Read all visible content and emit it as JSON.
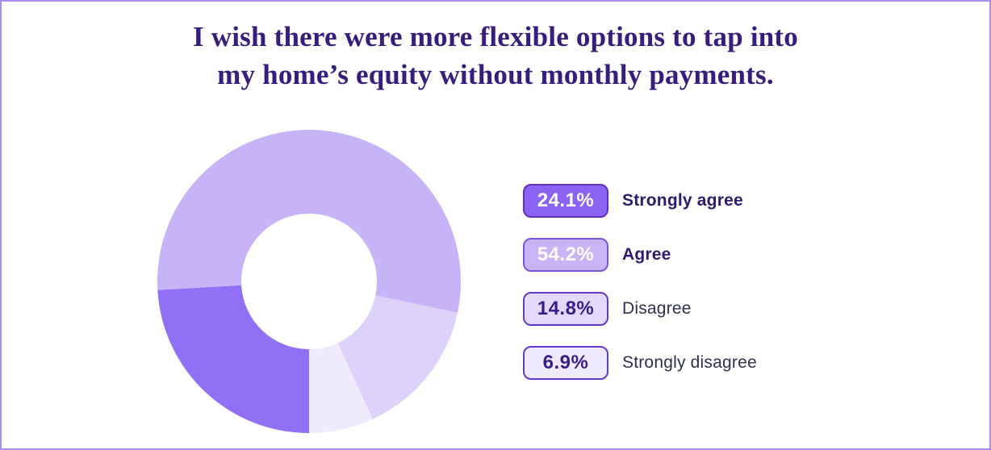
{
  "page": {
    "background": "#ffffff",
    "border_color": "#a98cf5"
  },
  "title": {
    "line1": "I wish there were more flexible options to tap into",
    "line2": "my home’s equity without monthly payments.",
    "color": "#371e7c"
  },
  "chart_data": {
    "type": "pie",
    "variant": "donut",
    "title": "I wish there were more flexible options to tap into my home’s equity without monthly payments.",
    "start_angle_deg": 180,
    "direction": "clockwise",
    "inner_radius_ratio": 0.447,
    "legend_position": "right",
    "segments": [
      {
        "label": "Strongly agree",
        "value": 24.1,
        "color": "#9070f5"
      },
      {
        "label": "Agree",
        "value": 54.2,
        "color": "#c6b3f8"
      },
      {
        "label": "Disagree",
        "value": 14.8,
        "color": "#ddd2f9"
      },
      {
        "label": "Strongly disagree",
        "value": 6.9,
        "color": "#efeafc"
      }
    ]
  },
  "legend": {
    "items": [
      {
        "pct": "24.1%",
        "label": "Strongly agree",
        "badge_bg": "#8a63f2",
        "badge_border": "#6030c0",
        "badge_text": "#ffffff",
        "label_color": "#2e1a6e",
        "label_weight": "bold"
      },
      {
        "pct": "54.2%",
        "label": "Agree",
        "badge_bg": "#c9b4f6",
        "badge_border": "#7e52e0",
        "badge_text": "#ffffff",
        "label_color": "#2e1a6e",
        "label_weight": "bold"
      },
      {
        "pct": "14.8%",
        "label": "Disagree",
        "badge_bg": "#e3dafb",
        "badge_border": "#6638c8",
        "badge_text": "#3a1d8a",
        "label_color": "#2e3050",
        "label_weight": "normal"
      },
      {
        "pct": "6.9%",
        "label": "Strongly disagree",
        "badge_bg": "#efeafd",
        "badge_border": "#6638c8",
        "badge_text": "#3a1d8a",
        "label_color": "#2e3050",
        "label_weight": "normal"
      }
    ]
  }
}
